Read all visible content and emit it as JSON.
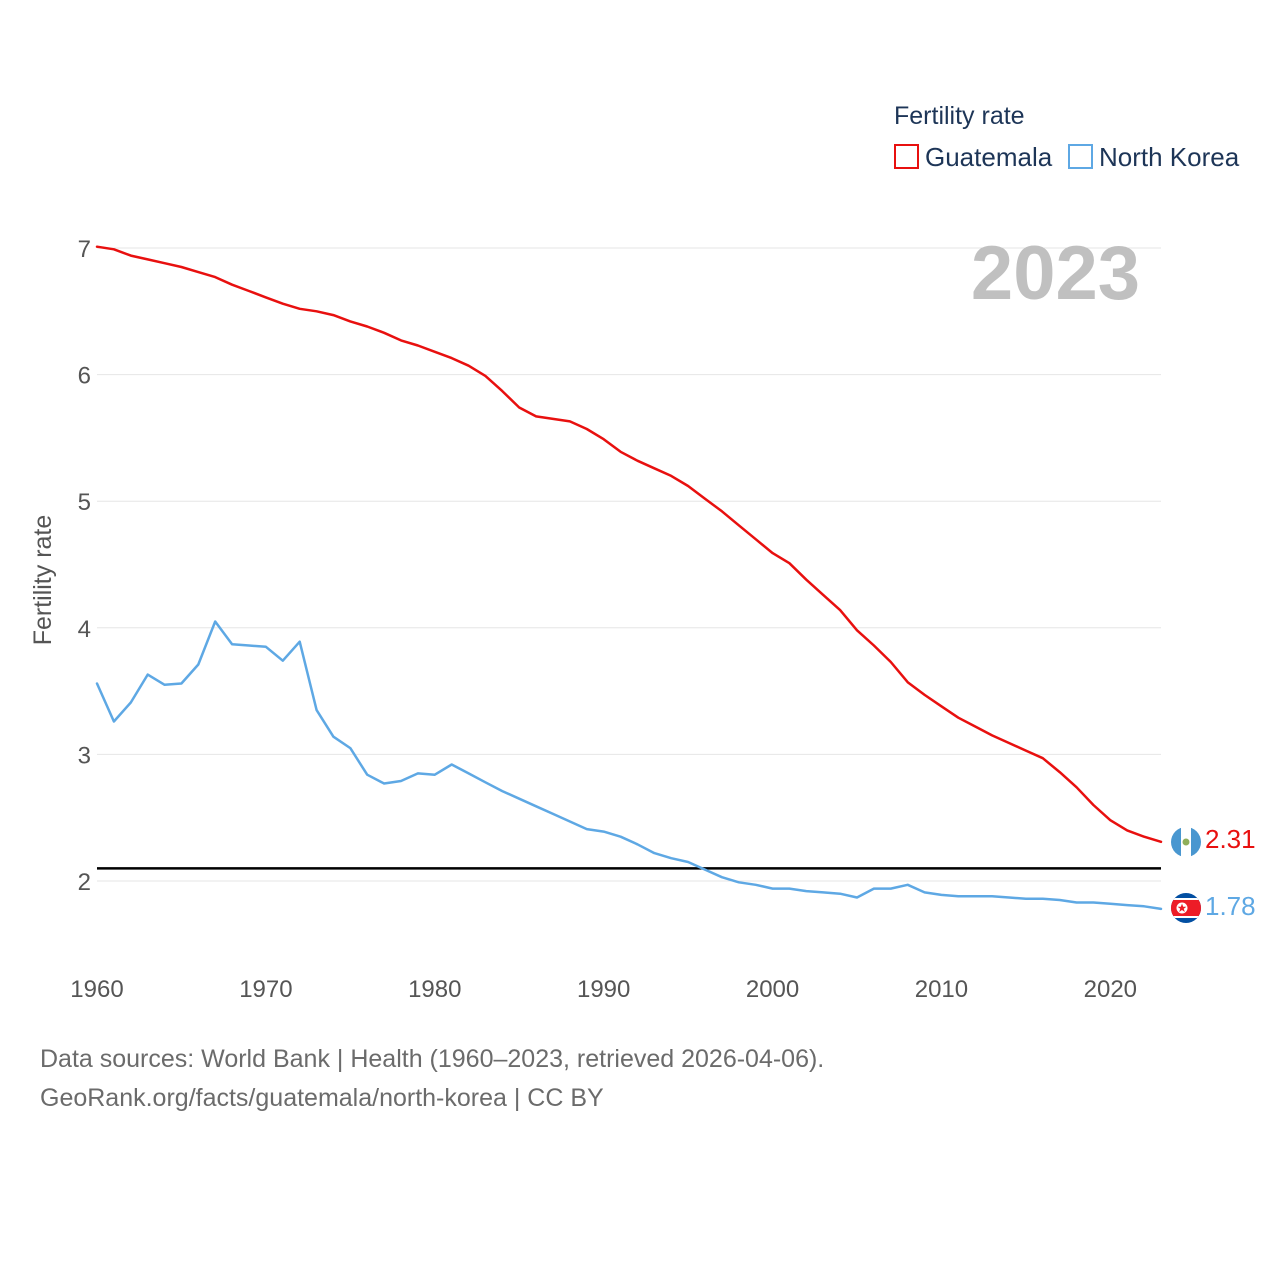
{
  "chart_data": {
    "type": "line",
    "title": "Fertility rate",
    "xlabel": "",
    "ylabel": "Fertility rate",
    "xlim": [
      1960,
      2023
    ],
    "ylim": [
      1.5,
      7.2
    ],
    "yticks": [
      2,
      3,
      4,
      5,
      6,
      7
    ],
    "xticks": [
      1960,
      1970,
      1980,
      1990,
      2000,
      2010,
      2020
    ],
    "year_label": "2023",
    "reference_line": 2.1,
    "x": [
      1960,
      1961,
      1962,
      1963,
      1964,
      1965,
      1966,
      1967,
      1968,
      1969,
      1970,
      1971,
      1972,
      1973,
      1974,
      1975,
      1976,
      1977,
      1978,
      1979,
      1980,
      1981,
      1982,
      1983,
      1984,
      1985,
      1986,
      1987,
      1988,
      1989,
      1990,
      1991,
      1992,
      1993,
      1994,
      1995,
      1996,
      1997,
      1998,
      1999,
      2000,
      2001,
      2002,
      2003,
      2004,
      2005,
      2006,
      2007,
      2008,
      2009,
      2010,
      2011,
      2012,
      2013,
      2014,
      2015,
      2016,
      2017,
      2018,
      2019,
      2020,
      2021,
      2022,
      2023
    ],
    "series": [
      {
        "name": "Guatemala",
        "color": "#e8100f",
        "end_label": "2.31",
        "values": [
          7.01,
          6.99,
          6.94,
          6.91,
          6.88,
          6.85,
          6.81,
          6.77,
          6.71,
          6.66,
          6.61,
          6.56,
          6.52,
          6.5,
          6.47,
          6.42,
          6.38,
          6.33,
          6.27,
          6.23,
          6.18,
          6.13,
          6.07,
          5.99,
          5.87,
          5.74,
          5.67,
          5.65,
          5.63,
          5.57,
          5.49,
          5.39,
          5.32,
          5.26,
          5.2,
          5.12,
          5.02,
          4.92,
          4.81,
          4.7,
          4.59,
          4.51,
          4.38,
          4.26,
          4.14,
          3.98,
          3.86,
          3.73,
          3.57,
          3.47,
          3.38,
          3.29,
          3.22,
          3.15,
          3.09,
          3.03,
          2.97,
          2.86,
          2.74,
          2.6,
          2.48,
          2.4,
          2.35,
          2.31
        ]
      },
      {
        "name": "North Korea",
        "color": "#5ea8e4",
        "end_label": "1.78",
        "values": [
          3.56,
          3.26,
          3.41,
          3.63,
          3.55,
          3.56,
          3.71,
          4.05,
          3.87,
          3.86,
          3.85,
          3.74,
          3.89,
          3.35,
          3.14,
          3.05,
          2.84,
          2.77,
          2.79,
          2.85,
          2.84,
          2.92,
          2.85,
          2.78,
          2.71,
          2.65,
          2.59,
          2.53,
          2.47,
          2.41,
          2.39,
          2.35,
          2.29,
          2.22,
          2.18,
          2.15,
          2.09,
          2.03,
          1.99,
          1.97,
          1.94,
          1.94,
          1.92,
          1.91,
          1.9,
          1.87,
          1.94,
          1.94,
          1.97,
          1.91,
          1.89,
          1.88,
          1.88,
          1.88,
          1.87,
          1.86,
          1.86,
          1.85,
          1.83,
          1.83,
          1.82,
          1.81,
          1.8,
          1.78
        ]
      }
    ]
  },
  "footer": {
    "line1": "Data sources: World Bank | Health (1960–2023, retrieved 2026-04-06).",
    "line2": "GeoRank.org/facts/guatemala/north-korea | CC BY"
  }
}
